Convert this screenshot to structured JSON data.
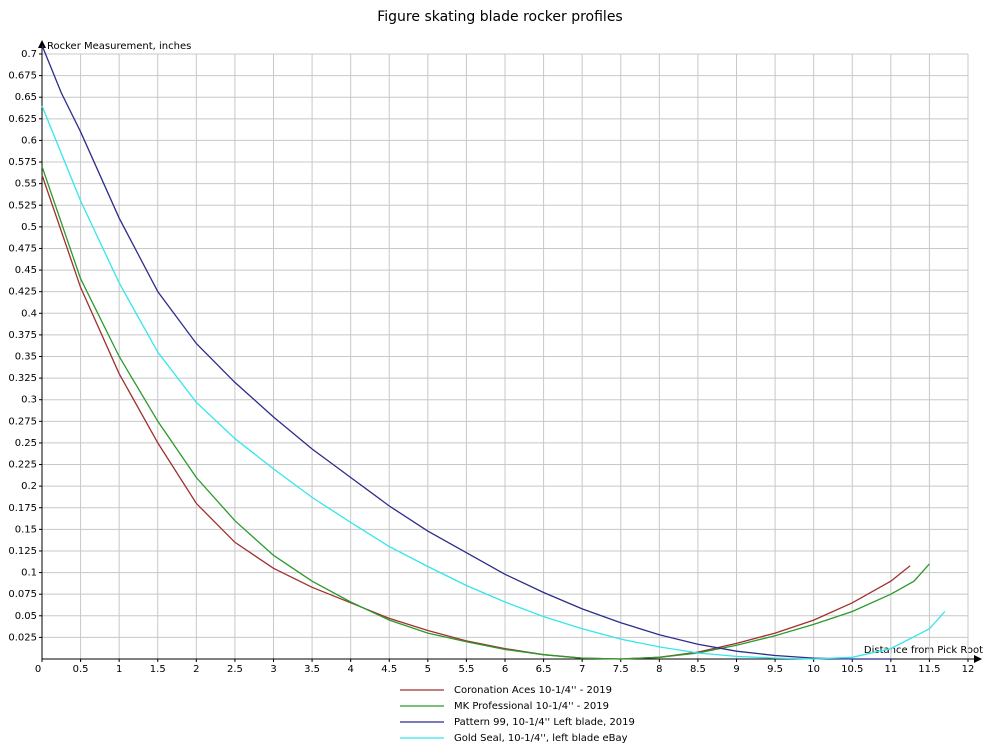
{
  "chart_data": {
    "type": "line",
    "title": "Figure skating blade rocker profiles",
    "y_label": "Rocker Measurement, inches",
    "x_label": "Distance from Pick Root",
    "xlim": [
      0,
      12
    ],
    "ylim": [
      0,
      0.7
    ],
    "xticks": [
      0,
      0.5,
      1,
      1.5,
      2,
      2.5,
      3,
      3.5,
      4,
      4.5,
      5,
      5.5,
      6,
      6.5,
      7,
      7.5,
      8,
      8.5,
      9,
      9.5,
      10,
      10.5,
      11,
      11.5,
      12
    ],
    "yticks": [
      0.025,
      0.05,
      0.075,
      0.1,
      0.125,
      0.15,
      0.175,
      0.2,
      0.225,
      0.25,
      0.275,
      0.3,
      0.325,
      0.35,
      0.375,
      0.4,
      0.425,
      0.45,
      0.475,
      0.5,
      0.525,
      0.55,
      0.575,
      0.6,
      0.625,
      0.65,
      0.675,
      0.7
    ],
    "grid": true,
    "legend": "bottom",
    "series": [
      {
        "name": "Coronation Aces 10-1/4'' - 2019",
        "color": "#a03030",
        "x": [
          0,
          0.5,
          1,
          1.5,
          2,
          2.5,
          3,
          3.5,
          4,
          4.5,
          5,
          5.5,
          6,
          6.5,
          7,
          7.5,
          8,
          8.5,
          9,
          9.5,
          10,
          10.5,
          11,
          11.25
        ],
        "values": [
          0.56,
          0.43,
          0.33,
          0.25,
          0.18,
          0.135,
          0.105,
          0.083,
          0.065,
          0.047,
          0.033,
          0.021,
          0.012,
          0.005,
          0.001,
          0,
          0.002,
          0.008,
          0.018,
          0.03,
          0.045,
          0.065,
          0.09,
          0.108
        ]
      },
      {
        "name": "MK Professional 10-1/4'' - 2019",
        "color": "#2a9a2a",
        "x": [
          0,
          0.5,
          1,
          1.5,
          2,
          2.5,
          3,
          3.5,
          4,
          4.5,
          5,
          5.5,
          6,
          6.5,
          7,
          7.5,
          8,
          8.5,
          9,
          9.5,
          10,
          10.5,
          11,
          11.3,
          11.5
        ],
        "values": [
          0.57,
          0.44,
          0.35,
          0.275,
          0.21,
          0.16,
          0.12,
          0.09,
          0.066,
          0.045,
          0.03,
          0.02,
          0.011,
          0.005,
          0.001,
          0,
          0.002,
          0.007,
          0.016,
          0.027,
          0.04,
          0.055,
          0.075,
          0.09,
          0.11
        ]
      },
      {
        "name": "Pattern 99, 10-1/4'' Left blade, 2019",
        "color": "#2c2c8c",
        "x": [
          0,
          0.25,
          0.5,
          1,
          1.5,
          2,
          2.5,
          3,
          3.5,
          4,
          4.5,
          5,
          5.5,
          6,
          6.5,
          7,
          7.5,
          8,
          8.5,
          9,
          9.5,
          10,
          10.5,
          11
        ],
        "values": [
          0.71,
          0.655,
          0.61,
          0.51,
          0.425,
          0.365,
          0.32,
          0.28,
          0.243,
          0.21,
          0.177,
          0.148,
          0.123,
          0.098,
          0.077,
          0.058,
          0.042,
          0.028,
          0.017,
          0.009,
          0.004,
          0.001,
          0,
          0
        ]
      },
      {
        "name": "Gold Seal, 10-1/4'', left blade eBay",
        "color": "#33e6ee",
        "x": [
          0,
          0.5,
          1,
          1.5,
          2,
          2.5,
          3,
          3.5,
          4,
          4.5,
          5,
          5.5,
          6,
          6.5,
          7,
          7.5,
          8,
          8.5,
          9,
          9.5,
          10,
          10.5,
          11,
          11.5,
          11.7
        ],
        "values": [
          0.64,
          0.53,
          0.435,
          0.355,
          0.297,
          0.255,
          0.22,
          0.187,
          0.158,
          0.13,
          0.107,
          0.085,
          0.066,
          0.049,
          0.035,
          0.023,
          0.014,
          0.007,
          0.003,
          0.001,
          0,
          0.002,
          0.012,
          0.035,
          0.055
        ]
      }
    ]
  }
}
